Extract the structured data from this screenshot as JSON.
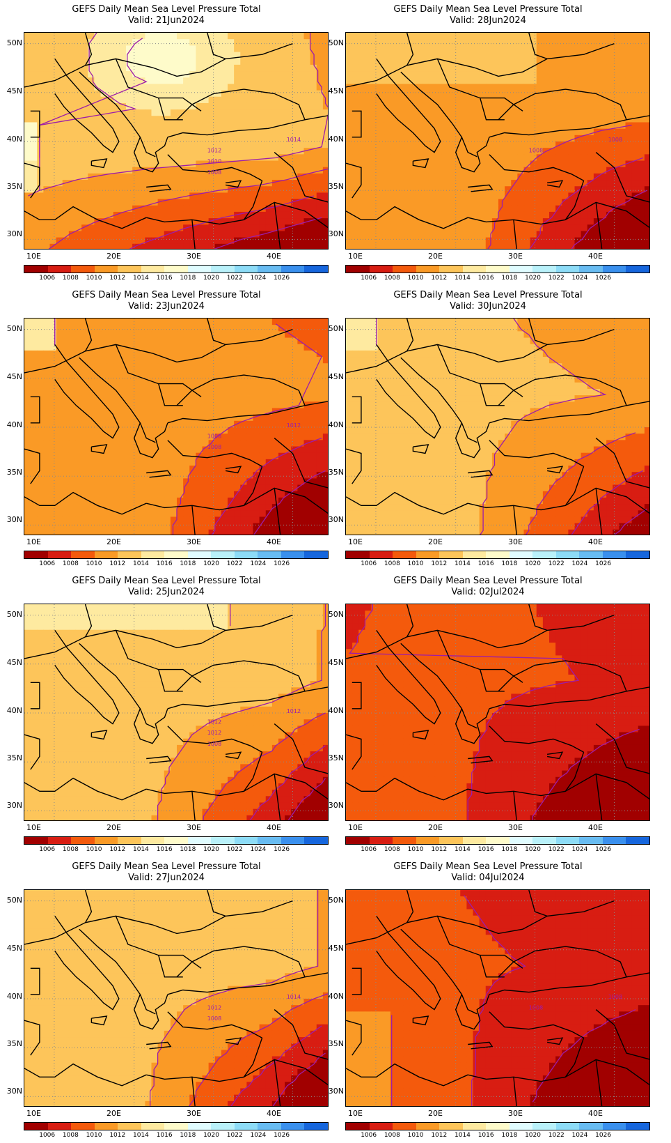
{
  "panels": [
    {
      "title": "GEFS Daily Mean Sea Level Pressure Total",
      "valid": "Valid: 21Jun2024",
      "contour_labels": [
        "1014",
        "1012",
        "1010",
        "1008"
      ]
    },
    {
      "title": "GEFS Daily Mean Sea Level Pressure Total",
      "valid": "Valid: 28Jun2024",
      "contour_labels": [
        "1008",
        "1008"
      ]
    },
    {
      "title": "GEFS Daily Mean Sea Level Pressure Total",
      "valid": "Valid: 23Jun2024",
      "contour_labels": [
        "1012",
        "1008",
        "1008"
      ]
    },
    {
      "title": "GEFS Daily Mean Sea Level Pressure Total",
      "valid": "Valid: 30Jun2024",
      "contour_labels": []
    },
    {
      "title": "GEFS Daily Mean Sea Level Pressure Total",
      "valid": "Valid: 25Jun2024",
      "contour_labels": [
        "1012",
        "1012",
        "1012",
        "1008"
      ]
    },
    {
      "title": "GEFS Daily Mean Sea Level Pressure Total",
      "valid": "Valid: 02Jul2024",
      "contour_labels": []
    },
    {
      "title": "GEFS Daily Mean Sea Level Pressure Total",
      "valid": "Valid: 27Jun2024",
      "contour_labels": [
        "1014",
        "1012",
        "1008"
      ]
    },
    {
      "title": "GEFS Daily Mean Sea Level Pressure Total",
      "valid": "Valid: 04Jul2024",
      "contour_labels": [
        "1008",
        "1008"
      ]
    }
  ],
  "axes": {
    "lat_labels": [
      "50N",
      "45N",
      "40N",
      "35N",
      "30N"
    ],
    "lon_labels": [
      "10E",
      "20E",
      "30E",
      "40E"
    ]
  },
  "colorbar": {
    "colors": [
      "#a10000",
      "#d81d12",
      "#f45a0c",
      "#fa9a26",
      "#fdc55a",
      "#feeaa0",
      "#fefbca",
      "#e0fcff",
      "#b9f1fa",
      "#8ddcf7",
      "#68bcf2",
      "#3a90ee",
      "#1666dd"
    ],
    "labels": [
      "1006",
      "1008",
      "1010",
      "1012",
      "1014",
      "1016",
      "1018",
      "1020",
      "1022",
      "1024",
      "1026"
    ]
  },
  "legend_colors": {
    "contour_line": "#9d1ca9",
    "coast": "#000000",
    "grid": "#8a8a8a"
  }
}
